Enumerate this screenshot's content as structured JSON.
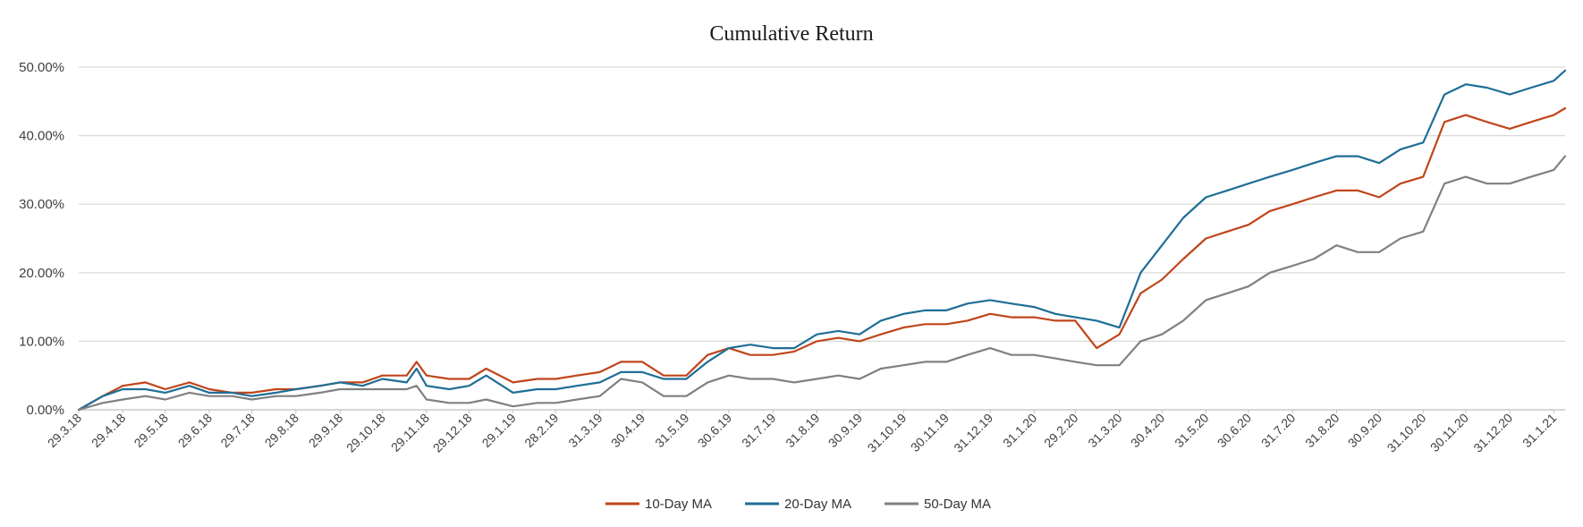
{
  "chart_data": {
    "type": "line",
    "title": "Cumulative Return",
    "xlabel": "",
    "ylabel": "",
    "ylim": [
      0,
      0.5
    ],
    "y_ticks": [
      "0.00%",
      "10.00%",
      "20.00%",
      "30.00%",
      "40.00%",
      "50.00%"
    ],
    "y_tick_values": [
      0,
      0.1,
      0.2,
      0.3,
      0.4,
      0.5
    ],
    "x_tick_labels": [
      "29.3.18",
      "29.4.18",
      "29.5.18",
      "29.6.18",
      "29.7.18",
      "29.8.18",
      "29.9.18",
      "29.10.18",
      "29.11.18",
      "29.12.18",
      "29.1.19",
      "28.2.19",
      "31.3.19",
      "30.4.19",
      "31.5.19",
      "30.6.19",
      "31.7.19",
      "31.8.19",
      "30.9.19",
      "31.10.19",
      "30.11.19",
      "31.12.19",
      "31.1.20",
      "29.2.20",
      "31.3.20",
      "30.4.20",
      "31.5.20",
      "30.6.20",
      "31.7.20",
      "31.8.20",
      "30.9.20",
      "31.10.20",
      "30.11.20",
      "31.12.20",
      "31.1.21"
    ],
    "grid": true,
    "legend_position": "bottom-center",
    "series": [
      {
        "name": "10-Day MA",
        "color": "#C0451A",
        "x": [
          "29.3.18",
          "15.4.18",
          "29.4.18",
          "15.5.18",
          "29.5.18",
          "15.6.18",
          "29.6.18",
          "15.7.18",
          "29.7.18",
          "15.8.18",
          "29.8.18",
          "15.9.18",
          "29.9.18",
          "15.10.18",
          "29.10.18",
          "15.11.18",
          "22.11.18",
          "29.11.18",
          "15.12.18",
          "29.12.18",
          "10.1.19",
          "29.1.19",
          "15.2.19",
          "28.2.19",
          "15.3.19",
          "31.3.19",
          "15.4.19",
          "30.4.19",
          "15.5.19",
          "31.5.19",
          "15.6.19",
          "30.6.19",
          "15.7.19",
          "31.7.19",
          "15.8.19",
          "31.8.19",
          "15.9.19",
          "30.9.19",
          "15.10.19",
          "31.10.19",
          "15.11.19",
          "30.11.19",
          "15.12.19",
          "31.12.19",
          "15.1.20",
          "31.1.20",
          "15.2.20",
          "29.2.20",
          "15.3.20",
          "31.3.20",
          "15.4.20",
          "30.4.20",
          "15.5.20",
          "31.5.20",
          "15.6.20",
          "30.6.20",
          "15.7.20",
          "31.7.20",
          "15.8.20",
          "31.8.20",
          "15.9.20",
          "30.9.20",
          "15.10.20",
          "31.10.20",
          "15.11.20",
          "30.11.20",
          "15.12.20",
          "31.12.20",
          "15.1.21",
          "31.1.21",
          "8.2.21"
        ],
        "values": [
          0.0,
          0.02,
          0.035,
          0.04,
          0.03,
          0.04,
          0.03,
          0.025,
          0.025,
          0.03,
          0.03,
          0.035,
          0.04,
          0.04,
          0.05,
          0.05,
          0.07,
          0.05,
          0.045,
          0.045,
          0.06,
          0.04,
          0.045,
          0.045,
          0.05,
          0.055,
          0.07,
          0.07,
          0.05,
          0.05,
          0.08,
          0.09,
          0.08,
          0.08,
          0.085,
          0.1,
          0.105,
          0.1,
          0.11,
          0.12,
          0.125,
          0.125,
          0.13,
          0.14,
          0.135,
          0.135,
          0.13,
          0.13,
          0.09,
          0.11,
          0.17,
          0.19,
          0.22,
          0.25,
          0.26,
          0.27,
          0.29,
          0.3,
          0.31,
          0.32,
          0.32,
          0.31,
          0.33,
          0.34,
          0.42,
          0.43,
          0.42,
          0.41,
          0.42,
          0.43,
          0.44
        ]
      },
      {
        "name": "20-Day MA",
        "color": "#1F6E96",
        "x": [
          "29.3.18",
          "15.4.18",
          "29.4.18",
          "15.5.18",
          "29.5.18",
          "15.6.18",
          "29.6.18",
          "15.7.18",
          "29.7.18",
          "15.8.18",
          "29.8.18",
          "15.9.18",
          "29.9.18",
          "15.10.18",
          "29.10.18",
          "15.11.18",
          "22.11.18",
          "29.11.18",
          "15.12.18",
          "29.12.18",
          "10.1.19",
          "29.1.19",
          "15.2.19",
          "28.2.19",
          "15.3.19",
          "31.3.19",
          "15.4.19",
          "30.4.19",
          "15.5.19",
          "31.5.19",
          "15.6.19",
          "30.6.19",
          "15.7.19",
          "31.7.19",
          "15.8.19",
          "31.8.19",
          "15.9.19",
          "30.9.19",
          "15.10.19",
          "31.10.19",
          "15.11.19",
          "30.11.19",
          "15.12.19",
          "31.12.19",
          "15.1.20",
          "31.1.20",
          "15.2.20",
          "29.2.20",
          "15.3.20",
          "31.3.20",
          "15.4.20",
          "30.4.20",
          "15.5.20",
          "31.5.20",
          "15.6.20",
          "30.6.20",
          "15.7.20",
          "31.7.20",
          "15.8.20",
          "31.8.20",
          "15.9.20",
          "30.9.20",
          "15.10.20",
          "31.10.20",
          "15.11.20",
          "30.11.20",
          "15.12.20",
          "31.12.20",
          "15.1.21",
          "31.1.21",
          "8.2.21"
        ],
        "values": [
          0.0,
          0.02,
          0.03,
          0.03,
          0.025,
          0.035,
          0.025,
          0.025,
          0.02,
          0.025,
          0.03,
          0.035,
          0.04,
          0.035,
          0.045,
          0.04,
          0.06,
          0.035,
          0.03,
          0.035,
          0.05,
          0.025,
          0.03,
          0.03,
          0.035,
          0.04,
          0.055,
          0.055,
          0.045,
          0.045,
          0.07,
          0.09,
          0.095,
          0.09,
          0.09,
          0.11,
          0.115,
          0.11,
          0.13,
          0.14,
          0.145,
          0.145,
          0.155,
          0.16,
          0.155,
          0.15,
          0.14,
          0.135,
          0.13,
          0.12,
          0.2,
          0.24,
          0.28,
          0.31,
          0.32,
          0.33,
          0.34,
          0.35,
          0.36,
          0.37,
          0.37,
          0.36,
          0.38,
          0.39,
          0.46,
          0.475,
          0.47,
          0.46,
          0.47,
          0.48,
          0.495
        ]
      },
      {
        "name": "50-Day MA",
        "color": "#808080",
        "x": [
          "29.3.18",
          "15.4.18",
          "29.4.18",
          "15.5.18",
          "29.5.18",
          "15.6.18",
          "29.6.18",
          "15.7.18",
          "29.7.18",
          "15.8.18",
          "29.8.18",
          "15.9.18",
          "29.9.18",
          "15.10.18",
          "29.10.18",
          "15.11.18",
          "22.11.18",
          "29.11.18",
          "15.12.18",
          "29.12.18",
          "10.1.19",
          "29.1.19",
          "15.2.19",
          "28.2.19",
          "15.3.19",
          "31.3.19",
          "15.4.19",
          "30.4.19",
          "15.5.19",
          "31.5.19",
          "15.6.19",
          "30.6.19",
          "15.7.19",
          "31.7.19",
          "15.8.19",
          "31.8.19",
          "15.9.19",
          "30.9.19",
          "15.10.19",
          "31.10.19",
          "15.11.19",
          "30.11.19",
          "15.12.19",
          "31.12.19",
          "15.1.20",
          "31.1.20",
          "15.2.20",
          "29.2.20",
          "15.3.20",
          "31.3.20",
          "15.4.20",
          "30.4.20",
          "15.5.20",
          "31.5.20",
          "15.6.20",
          "30.6.20",
          "15.7.20",
          "31.7.20",
          "15.8.20",
          "31.8.20",
          "15.9.20",
          "30.9.20",
          "15.10.20",
          "31.10.20",
          "15.11.20",
          "30.11.20",
          "15.12.20",
          "31.12.20",
          "15.1.21",
          "31.1.21",
          "8.2.21"
        ],
        "values": [
          0.0,
          0.01,
          0.015,
          0.02,
          0.015,
          0.025,
          0.02,
          0.02,
          0.015,
          0.02,
          0.02,
          0.025,
          0.03,
          0.03,
          0.03,
          0.03,
          0.035,
          0.015,
          0.01,
          0.01,
          0.015,
          0.005,
          0.01,
          0.01,
          0.015,
          0.02,
          0.045,
          0.04,
          0.02,
          0.02,
          0.04,
          0.05,
          0.045,
          0.045,
          0.04,
          0.045,
          0.05,
          0.045,
          0.06,
          0.065,
          0.07,
          0.07,
          0.08,
          0.09,
          0.08,
          0.08,
          0.075,
          0.07,
          0.065,
          0.065,
          0.1,
          0.11,
          0.13,
          0.16,
          0.17,
          0.18,
          0.2,
          0.21,
          0.22,
          0.24,
          0.23,
          0.23,
          0.25,
          0.26,
          0.33,
          0.34,
          0.33,
          0.33,
          0.34,
          0.35,
          0.37
        ]
      }
    ]
  }
}
